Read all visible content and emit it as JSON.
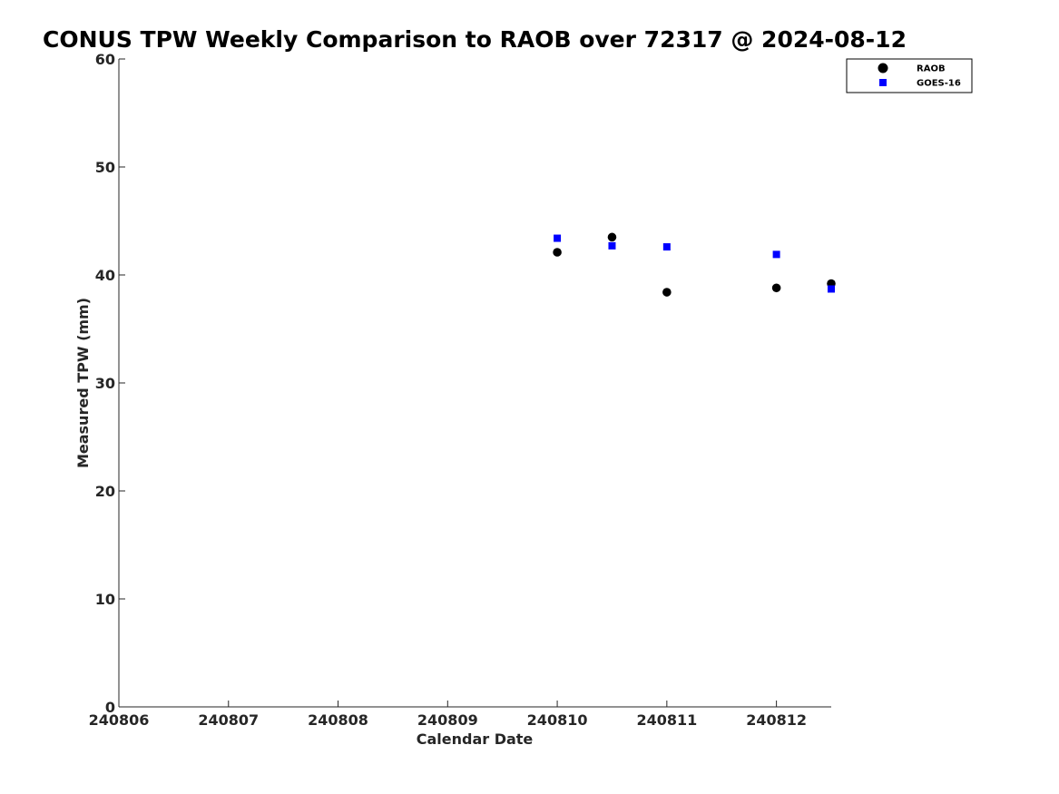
{
  "chart_data": {
    "type": "scatter",
    "title": "CONUS TPW Weekly Comparison to RAOB over 72317 @ 2024-08-12",
    "xlabel": "Calendar Date",
    "ylabel": "Measured TPW (mm)",
    "xlim": [
      240806,
      240812.5
    ],
    "ylim": [
      0,
      60
    ],
    "x_ticks": [
      240806,
      240807,
      240808,
      240809,
      240810,
      240811,
      240812
    ],
    "x_tick_labels": [
      "240806",
      "240807",
      "240808",
      "240809",
      "240810",
      "240811",
      "240812"
    ],
    "y_ticks": [
      0,
      10,
      20,
      30,
      40,
      50,
      60
    ],
    "y_tick_labels": [
      "0",
      "10",
      "20",
      "30",
      "40",
      "50",
      "60"
    ],
    "grid": false,
    "legend_position": "top-right",
    "series": [
      {
        "name": "RAOB",
        "marker": "circle",
        "color": "#000000",
        "x": [
          240810,
          240810.5,
          240811,
          240812,
          240812.5
        ],
        "y": [
          42.1,
          43.5,
          38.4,
          38.8,
          39.2
        ]
      },
      {
        "name": "GOES-16",
        "marker": "square",
        "color": "#0000ff",
        "x": [
          240810,
          240810.5,
          240811,
          240812,
          240812.5
        ],
        "y": [
          43.4,
          42.7,
          42.6,
          41.9,
          38.7
        ]
      }
    ]
  }
}
